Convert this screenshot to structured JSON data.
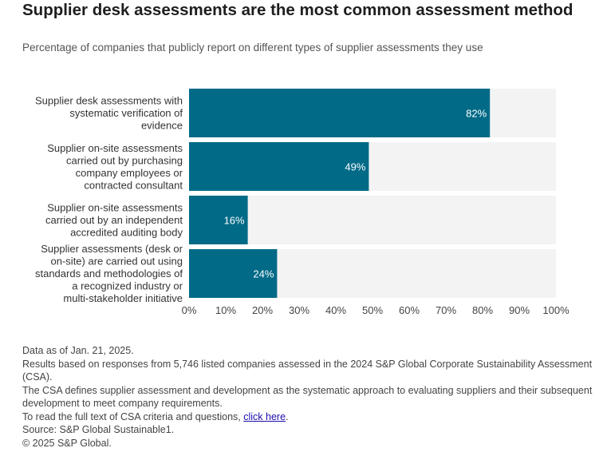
{
  "header": {
    "title": "Supplier desk assessments are the most common assessment method",
    "subtitle": "Percentage of companies that publicly report on different types of supplier assessments they use"
  },
  "chart_data": {
    "type": "bar",
    "orientation": "horizontal",
    "categories": [
      [
        "Supplier desk assessments with",
        "systematic verification of",
        "evidence"
      ],
      [
        "Supplier on-site assessments",
        "carried out by purchasing",
        "company employees or",
        "contracted consultant"
      ],
      [
        "Supplier on-site assessments",
        "carried out by an independent",
        "accredited auditing body"
      ],
      [
        "Supplier assessments (desk or",
        "on-site) are carried out using",
        "standards and methodologies of",
        "a recognized industry or",
        "multi-stakeholder initiative"
      ]
    ],
    "values": [
      82,
      49,
      16,
      24
    ],
    "value_labels": [
      "82%",
      "49%",
      "16%",
      "24%"
    ],
    "xlim": [
      0,
      100
    ],
    "xticks": [
      "0%",
      "10%",
      "20%",
      "30%",
      "40%",
      "50%",
      "60%",
      "70%",
      "80%",
      "90%",
      "100%"
    ],
    "colors": {
      "bar": "#006A87",
      "track": "#F3F3F3"
    },
    "grid": false
  },
  "footer": {
    "lines": [
      "Data as of Jan. 21, 2025.",
      "Results based on responses from 5,746 listed companies assessed in the 2024 S&P Global Corporate Sustainability Assessment (CSA).",
      "The CSA defines supplier assessment and development as the systematic approach to evaluating suppliers and their subsequent development to meet company requirements."
    ],
    "link_prefix": "To read the full text of CSA criteria and questions, ",
    "link_text": "click here",
    "link_suffix": ".",
    "source": "Source: S&P Global Sustainable1.",
    "copyright": "© 2025 S&P Global."
  }
}
